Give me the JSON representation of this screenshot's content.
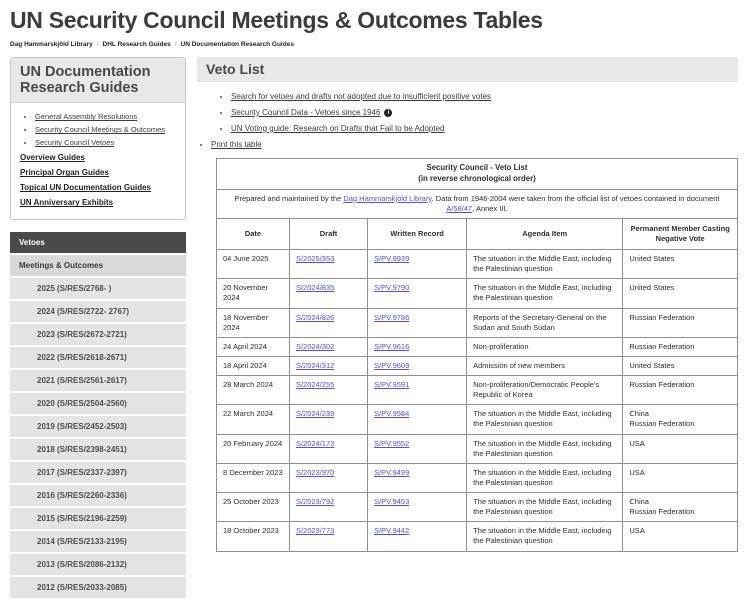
{
  "page": {
    "title": "UN Security Council Meetings & Outcomes Tables",
    "breadcrumb": {
      "separator": "/",
      "items": [
        "Dag Hammarskjöld Library",
        "DHL Research Guides",
        "UN Documentation Research Guides"
      ]
    }
  },
  "sidebar": {
    "box": {
      "heading": "UN Documentation Research Guides",
      "links": [
        "General Assembly Resolutions",
        "Security Council Meetings & Outcomes",
        "Security Council Vetoes"
      ],
      "guide_links": [
        "Overview Guides",
        "Principal Organ Guides",
        "Topical UN Documentation Guides",
        "UN Anniversary Exhibits"
      ]
    },
    "nav": {
      "active": "Vetoes",
      "parent": "Meetings & Outcomes",
      "years": [
        "2025 (S/RES/2768- )",
        "2024 (S/RES/2722- 2767)",
        "2023 (S/RES/2672-2721)",
        "2022 (S/RES/2618-2671)",
        "2021 (S/RES/2561-2617)",
        "2020 (S/RES/2504-2560)",
        "2019 (S/RES/2452-2503)",
        "2018 (S/RES/2398-2451)",
        "2017 (S/RES/2337-2397)",
        "2016 (S/RES/2260-2336)",
        "2015 (S/RES/2196-2259)",
        "2014 (S/RES/2133-2195)",
        "2013 (S/RES/2086-2132)",
        "2012 (S/RES/2033-2085)"
      ]
    }
  },
  "main": {
    "section_title": "Veto List",
    "links": [
      {
        "label": "Search for vetoes and drafts not adopted due to insufficient positive votes",
        "info_icon": false
      },
      {
        "label": "Security Council Data - Vetoes since 1946",
        "info_icon": true
      },
      {
        "label": "UN Voting guide: Research on Drafts that Fail to be Adopted",
        "info_icon": false
      }
    ],
    "info_icon_glyph": "i",
    "print_link": "Print this table",
    "table": {
      "caption_line1": "Security Council - Veto List",
      "caption_line2": "(in reverse chronological order)",
      "note": {
        "prefix": "Prepared and maintained by the ",
        "link1": "Dag Hammarskjöld Library",
        "middle": ". Data from 1946-2004 were taken from the official list of vetoes contained in document ",
        "link2": "A/58/47",
        "suffix": ", Annex III."
      },
      "columns": [
        "Date",
        "Draft",
        "Written Record",
        "Agenda Item",
        "Permanent Member Casting Negative Vote"
      ],
      "rows": [
        {
          "date": "04 June 2025",
          "draft": "S/2025/353",
          "record": "S/PV.9939",
          "agenda": "The situation in the Middle East, including the Palestinian question",
          "member": "United States"
        },
        {
          "date": "20 November 2024",
          "draft": "S/2024/835",
          "record": "S/PV.9790",
          "agenda": "The situation in the Middle East, including the Palestinian question",
          "member": "United States"
        },
        {
          "date": "18 November 2024",
          "draft": "S/2024/826",
          "record": "S/PV.9786",
          "agenda": "Reports of the Secretary-General on the Sudan and South Sudan",
          "member": "Russian Federation"
        },
        {
          "date": "24 April 2024",
          "draft": "S/2024/302",
          "record": "S/PV.9616",
          "agenda": "Non-proliferation",
          "member": "Russian Federation"
        },
        {
          "date": "18 April 2024",
          "draft": "S/2024/312",
          "record": "S/PV.9609",
          "agenda": "Admission of new members",
          "member": "United States"
        },
        {
          "date": "28 March 2024",
          "draft": "S/2024/255",
          "record": "S/PV.9591",
          "agenda": "Non-proliferation/Democratic People's Republic of Korea",
          "member": "Russian Federation"
        },
        {
          "date": "22 March 2024",
          "draft": "S/2024/239",
          "record": "S/PV.9584",
          "agenda": "The situation in the Middle East, including the Palestinian question",
          "member": "China\nRussian Federation"
        },
        {
          "date": "20 February 2024",
          "draft": "S/2024/173",
          "record": "S/PV.9552",
          "agenda": "The situation in the Middle East, including the Palestinian question",
          "member": "USA"
        },
        {
          "date": "8 December 2023",
          "draft": "S/2023/970",
          "record": "S/PV.9499",
          "agenda": "The situation in the Middle East, including the Palestinian question",
          "member": "USA"
        },
        {
          "date": "25 October 2023",
          "draft": "S/2023/792",
          "record": "S/PV.9453",
          "agenda": "The situation in the Middle East, including the Palestinian question",
          "member": "China\nRussian Federation"
        },
        {
          "date": "18 October 2023",
          "draft": "S/2023/773",
          "record": "S/PV.9442",
          "agenda": "The situation in the Middle East, including the Palestinian question",
          "member": "USA"
        }
      ]
    }
  },
  "colors": {
    "header_bar_gray": "#e8e8e8",
    "nav_active_bg": "#4a4a4a",
    "nav_parent_bg": "#d8d8d8",
    "nav_year_bg": "#e4e4e4",
    "table_link_blue": "#5353cd",
    "table_border": "#8f8f8f"
  }
}
